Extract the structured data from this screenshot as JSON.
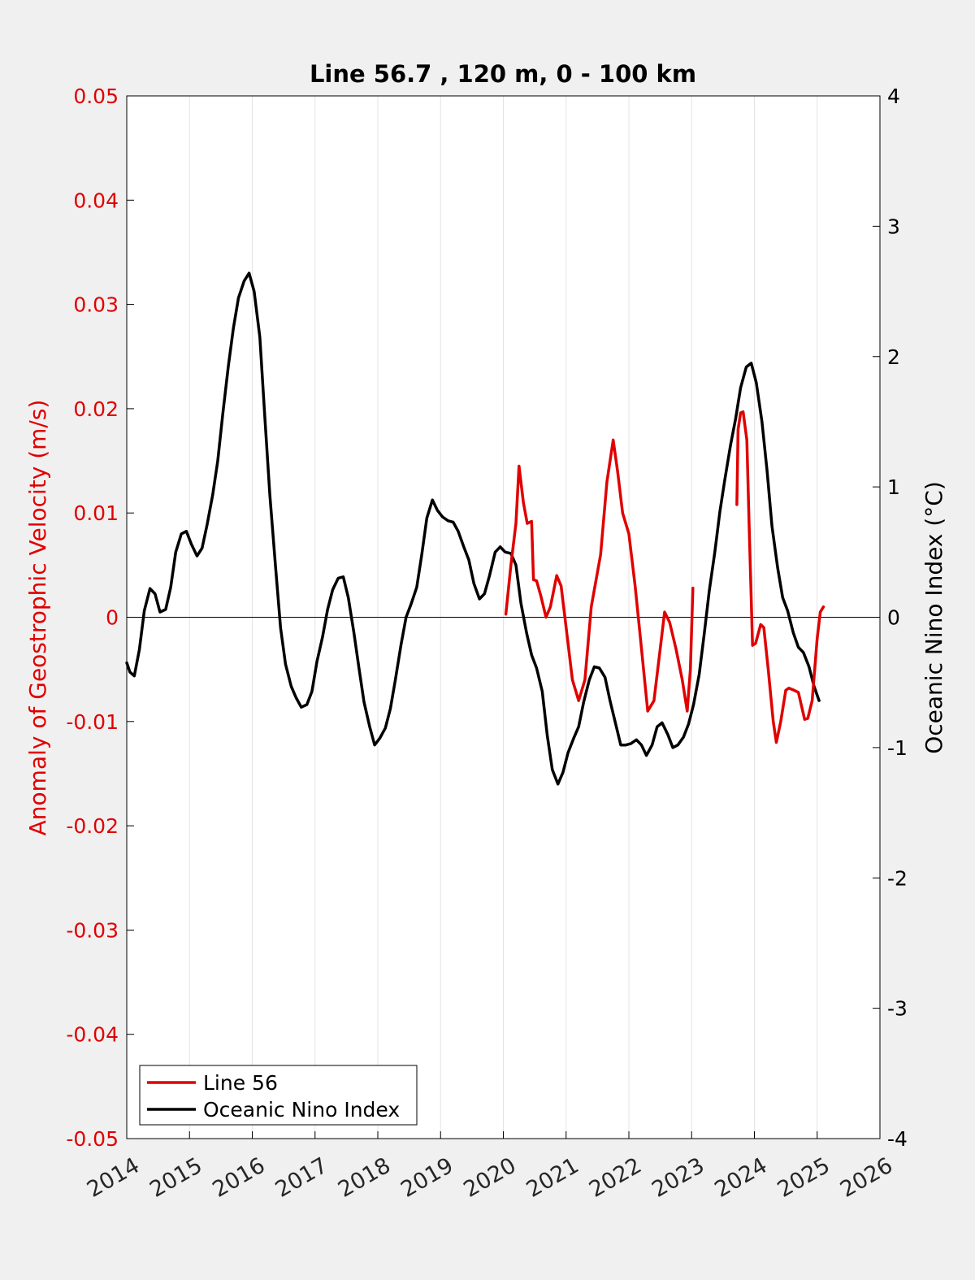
{
  "chart_data": {
    "type": "line",
    "title": "Line 56.7 , 120 m, 0 - 100 km",
    "xlabel": "",
    "ylabel_left": "Anomaly of Geostrophic Velocity (m/s)",
    "ylabel_right": "Oceanic Nino Index (°C)",
    "xlim": [
      2014,
      2026
    ],
    "ylim_left": [
      -0.05,
      0.05
    ],
    "ylim_right": [
      -4,
      4
    ],
    "x_ticks": [
      "2014",
      "2015",
      "2016",
      "2017",
      "2018",
      "2019",
      "2020",
      "2021",
      "2022",
      "2023",
      "2024",
      "2025",
      "2026"
    ],
    "y_ticks_left": [
      "0.05",
      "0.04",
      "0.03",
      "0.02",
      "0.01",
      "0",
      "-0.01",
      "-0.02",
      "-0.03",
      "-0.04",
      "-0.05"
    ],
    "y_ticks_right": [
      "4",
      "3",
      "2",
      "1",
      "0",
      "-1",
      "-2",
      "-3",
      "-4"
    ],
    "vertical_grid": true,
    "zero_line": true,
    "legend_position": "bottom-left",
    "colors": {
      "left_axis": "#e00000",
      "line56": "#e00000",
      "oni": "#000000",
      "background": "#f0f0f0",
      "plot_area": "#ffffff"
    },
    "series": [
      {
        "name": "Line 56",
        "axis": "left",
        "color": "#e00000",
        "segments": [
          [
            [
              2020.04,
              0.0003
            ],
            [
              2020.12,
              0.005
            ],
            [
              2020.2,
              0.009
            ],
            [
              2020.25,
              0.0145
            ],
            [
              2020.32,
              0.011
            ],
            [
              2020.38,
              0.009
            ],
            [
              2020.45,
              0.0092
            ],
            [
              2020.48,
              0.0036
            ],
            [
              2020.53,
              0.0035
            ],
            [
              2020.6,
              0.002
            ],
            [
              2020.68,
              0.0
            ],
            [
              2020.75,
              0.001
            ],
            [
              2020.85,
              0.004
            ],
            [
              2020.92,
              0.003
            ],
            [
              2021.0,
              -0.001
            ],
            [
              2021.1,
              -0.006
            ],
            [
              2021.2,
              -0.008
            ],
            [
              2021.3,
              -0.006
            ],
            [
              2021.4,
              0.001
            ],
            [
              2021.55,
              0.006
            ],
            [
              2021.65,
              0.013
            ],
            [
              2021.75,
              0.017
            ],
            [
              2021.82,
              0.014
            ],
            [
              2021.9,
              0.01
            ],
            [
              2022.0,
              0.008
            ],
            [
              2022.1,
              0.003
            ],
            [
              2022.2,
              -0.003
            ],
            [
              2022.3,
              -0.009
            ],
            [
              2022.4,
              -0.008
            ],
            [
              2022.5,
              -0.003
            ],
            [
              2022.57,
              0.0005
            ],
            [
              2022.65,
              -0.0005
            ],
            [
              2022.75,
              -0.003
            ],
            [
              2022.85,
              -0.006
            ],
            [
              2022.93,
              -0.009
            ],
            [
              2022.98,
              -0.005
            ],
            [
              2023.02,
              0.0028
            ]
          ],
          [
            [
              2023.72,
              0.0108
            ],
            [
              2023.74,
              0.018
            ],
            [
              2023.78,
              0.0196
            ],
            [
              2023.82,
              0.0197
            ],
            [
              2023.88,
              0.017
            ],
            [
              2023.92,
              0.008
            ],
            [
              2023.97,
              -0.0027
            ],
            [
              2024.02,
              -0.0025
            ],
            [
              2024.1,
              -0.0007
            ],
            [
              2024.15,
              -0.001
            ],
            [
              2024.22,
              -0.005
            ],
            [
              2024.3,
              -0.01
            ],
            [
              2024.35,
              -0.012
            ],
            [
              2024.42,
              -0.01
            ],
            [
              2024.5,
              -0.007
            ],
            [
              2024.55,
              -0.0068
            ],
            [
              2024.63,
              -0.007
            ],
            [
              2024.7,
              -0.0072
            ],
            [
              2024.8,
              -0.0098
            ],
            [
              2024.85,
              -0.0097
            ],
            [
              2024.92,
              -0.008
            ],
            [
              2025.0,
              -0.002
            ],
            [
              2025.05,
              0.0005
            ],
            [
              2025.1,
              0.001
            ]
          ]
        ]
      },
      {
        "name": "Oceanic Nino Index",
        "axis": "right",
        "color": "#000000",
        "points": [
          [
            2014.0,
            -0.35
          ],
          [
            2014.05,
            -0.42
          ],
          [
            2014.12,
            -0.45
          ],
          [
            2014.2,
            -0.25
          ],
          [
            2014.28,
            0.05
          ],
          [
            2014.37,
            0.22
          ],
          [
            2014.45,
            0.18
          ],
          [
            2014.53,
            0.04
          ],
          [
            2014.62,
            0.06
          ],
          [
            2014.7,
            0.23
          ],
          [
            2014.78,
            0.5
          ],
          [
            2014.87,
            0.64
          ],
          [
            2014.95,
            0.66
          ],
          [
            2015.03,
            0.56
          ],
          [
            2015.12,
            0.47
          ],
          [
            2015.2,
            0.53
          ],
          [
            2015.28,
            0.71
          ],
          [
            2015.37,
            0.94
          ],
          [
            2015.45,
            1.2
          ],
          [
            2015.53,
            1.56
          ],
          [
            2015.62,
            1.93
          ],
          [
            2015.7,
            2.22
          ],
          [
            2015.78,
            2.45
          ],
          [
            2015.87,
            2.58
          ],
          [
            2015.95,
            2.64
          ],
          [
            2016.03,
            2.5
          ],
          [
            2016.12,
            2.15
          ],
          [
            2016.2,
            1.53
          ],
          [
            2016.28,
            0.94
          ],
          [
            2016.37,
            0.39
          ],
          [
            2016.45,
            -0.08
          ],
          [
            2016.53,
            -0.36
          ],
          [
            2016.62,
            -0.53
          ],
          [
            2016.7,
            -0.62
          ],
          [
            2016.78,
            -0.69
          ],
          [
            2016.87,
            -0.67
          ],
          [
            2016.95,
            -0.57
          ],
          [
            2017.03,
            -0.34
          ],
          [
            2017.12,
            -0.15
          ],
          [
            2017.2,
            0.06
          ],
          [
            2017.28,
            0.21
          ],
          [
            2017.37,
            0.3
          ],
          [
            2017.45,
            0.31
          ],
          [
            2017.53,
            0.15
          ],
          [
            2017.62,
            -0.12
          ],
          [
            2017.7,
            -0.39
          ],
          [
            2017.78,
            -0.65
          ],
          [
            2017.87,
            -0.84
          ],
          [
            2017.95,
            -0.98
          ],
          [
            2018.03,
            -0.93
          ],
          [
            2018.12,
            -0.85
          ],
          [
            2018.2,
            -0.7
          ],
          [
            2018.28,
            -0.48
          ],
          [
            2018.37,
            -0.21
          ],
          [
            2018.45,
            0.0
          ],
          [
            2018.53,
            0.1
          ],
          [
            2018.62,
            0.23
          ],
          [
            2018.7,
            0.48
          ],
          [
            2018.78,
            0.76
          ],
          [
            2018.87,
            0.9
          ],
          [
            2018.95,
            0.82
          ],
          [
            2019.03,
            0.77
          ],
          [
            2019.12,
            0.74
          ],
          [
            2019.2,
            0.73
          ],
          [
            2019.28,
            0.66
          ],
          [
            2019.37,
            0.54
          ],
          [
            2019.45,
            0.44
          ],
          [
            2019.53,
            0.26
          ],
          [
            2019.62,
            0.14
          ],
          [
            2019.7,
            0.18
          ],
          [
            2019.78,
            0.32
          ],
          [
            2019.87,
            0.5
          ],
          [
            2019.95,
            0.54
          ],
          [
            2020.03,
            0.5
          ],
          [
            2020.12,
            0.49
          ],
          [
            2020.2,
            0.4
          ],
          [
            2020.28,
            0.11
          ],
          [
            2020.37,
            -0.12
          ],
          [
            2020.45,
            -0.29
          ],
          [
            2020.53,
            -0.39
          ],
          [
            2020.62,
            -0.57
          ],
          [
            2020.7,
            -0.91
          ],
          [
            2020.78,
            -1.17
          ],
          [
            2020.87,
            -1.28
          ],
          [
            2020.95,
            -1.19
          ],
          [
            2021.03,
            -1.04
          ],
          [
            2021.12,
            -0.93
          ],
          [
            2021.2,
            -0.84
          ],
          [
            2021.28,
            -0.65
          ],
          [
            2021.37,
            -0.48
          ],
          [
            2021.45,
            -0.38
          ],
          [
            2021.53,
            -0.39
          ],
          [
            2021.62,
            -0.46
          ],
          [
            2021.7,
            -0.64
          ],
          [
            2021.78,
            -0.8
          ],
          [
            2021.87,
            -0.98
          ],
          [
            2021.95,
            -0.98
          ],
          [
            2022.03,
            -0.97
          ],
          [
            2022.12,
            -0.94
          ],
          [
            2022.2,
            -0.98
          ],
          [
            2022.28,
            -1.06
          ],
          [
            2022.37,
            -0.98
          ],
          [
            2022.45,
            -0.84
          ],
          [
            2022.53,
            -0.81
          ],
          [
            2022.62,
            -0.9
          ],
          [
            2022.7,
            -1.0
          ],
          [
            2022.78,
            -0.98
          ],
          [
            2022.87,
            -0.92
          ],
          [
            2022.95,
            -0.82
          ],
          [
            2023.03,
            -0.67
          ],
          [
            2023.12,
            -0.44
          ],
          [
            2023.2,
            -0.13
          ],
          [
            2023.28,
            0.2
          ],
          [
            2023.37,
            0.5
          ],
          [
            2023.45,
            0.81
          ],
          [
            2023.53,
            1.06
          ],
          [
            2023.62,
            1.32
          ],
          [
            2023.7,
            1.52
          ],
          [
            2023.78,
            1.76
          ],
          [
            2023.87,
            1.92
          ],
          [
            2023.95,
            1.95
          ],
          [
            2024.03,
            1.8
          ],
          [
            2024.12,
            1.5
          ],
          [
            2024.2,
            1.13
          ],
          [
            2024.28,
            0.7
          ],
          [
            2024.37,
            0.38
          ],
          [
            2024.45,
            0.15
          ],
          [
            2024.53,
            0.05
          ],
          [
            2024.62,
            -0.12
          ],
          [
            2024.7,
            -0.23
          ],
          [
            2024.78,
            -0.27
          ],
          [
            2024.87,
            -0.38
          ],
          [
            2024.95,
            -0.53
          ],
          [
            2025.03,
            -0.64
          ]
        ]
      }
    ]
  }
}
